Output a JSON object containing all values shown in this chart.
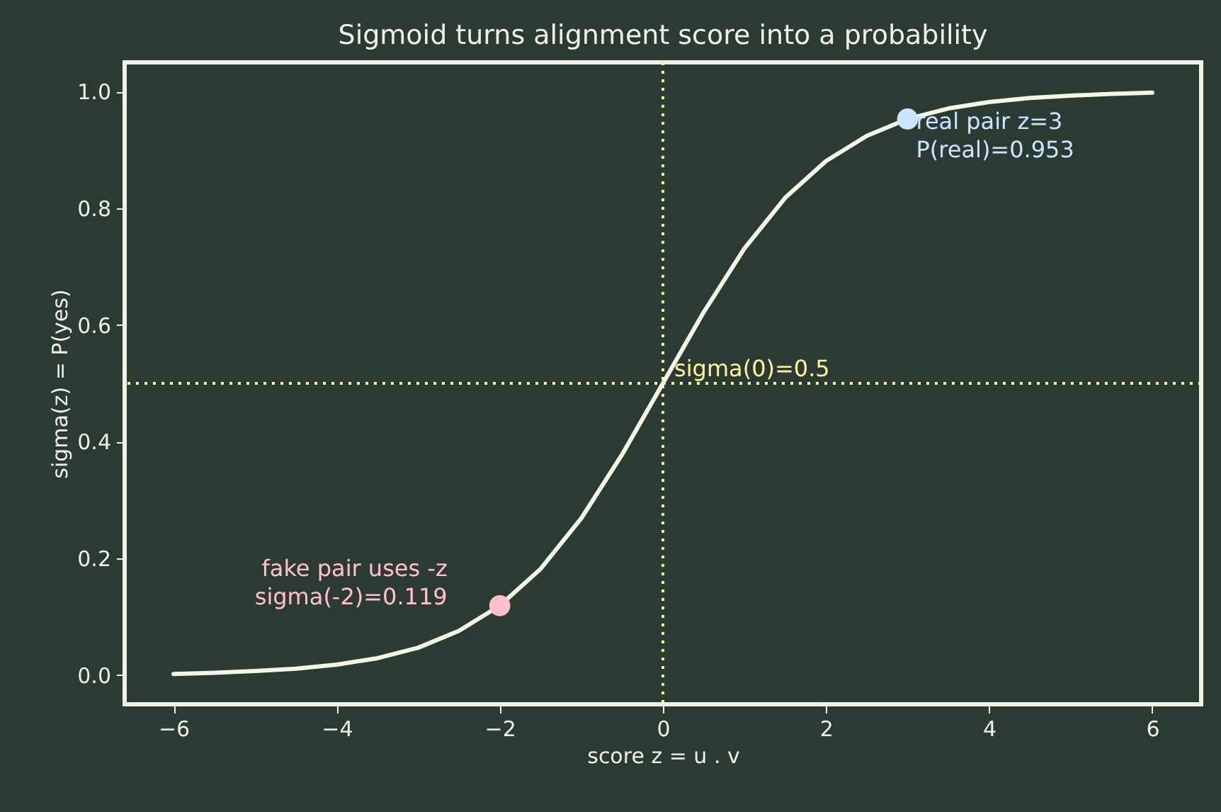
{
  "chart_data": {
    "type": "line",
    "title": "Sigmoid turns alignment score into a probability",
    "xlabel": "score z = u . v",
    "ylabel": "sigma(z) = P(yes)",
    "x": [
      -6,
      -5.5,
      -5,
      -4.5,
      -4,
      -3.5,
      -3,
      -2.5,
      -2,
      -1.5,
      -1,
      -0.5,
      0,
      0.5,
      1,
      1.5,
      2,
      2.5,
      3,
      3.5,
      4,
      4.5,
      5,
      5.5,
      6
    ],
    "series": [
      {
        "color": "#f5f5e6",
        "values": [
          0.002,
          0.004,
          0.007,
          0.011,
          0.018,
          0.029,
          0.047,
          0.076,
          0.119,
          0.182,
          0.269,
          0.378,
          0.5,
          0.622,
          0.731,
          0.818,
          0.881,
          0.924,
          0.953,
          0.971,
          0.982,
          0.989,
          0.993,
          0.996,
          0.998
        ]
      },
      {
        "type": "scatter",
        "marker": "circle",
        "color": "#ffc0cb",
        "x": [
          -2
        ],
        "values": [
          0.119
        ]
      },
      {
        "type": "scatter",
        "marker": "circle",
        "color": "#cce5ff",
        "x": [
          3
        ],
        "values": [
          0.953
        ]
      }
    ],
    "ref_lines": [
      {
        "axis": "x",
        "value": 0,
        "color": "#fff3a0",
        "line_style": "dotted"
      },
      {
        "axis": "y",
        "value": 0.5,
        "color": "#fff3a0",
        "line_style": "dotted"
      }
    ],
    "annotations": [
      {
        "text": "real pair z=3\nP(real)=0.953",
        "x": 3,
        "y": 0.953
      },
      {
        "text": "sigma(0)=0.5",
        "x": 0,
        "y": 0.5
      },
      {
        "text": "fake pair uses -z\nsigma(-2)=0.119",
        "x": -2,
        "y": 0.119
      }
    ],
    "xlim": [
      -6.6,
      6.6
    ],
    "xticks": [
      {
        "value": -6,
        "label": "−6"
      },
      {
        "value": -4,
        "label": "−4"
      },
      {
        "value": -2,
        "label": "−2"
      },
      0,
      2,
      4,
      6
    ],
    "ylim": [
      -0.05,
      1.05
    ],
    "yticks": [
      {
        "value": 0,
        "label": "0.0"
      },
      {
        "value": 0.2,
        "label": "0.2"
      },
      {
        "value": 0.4,
        "label": "0.4"
      },
      {
        "value": 0.6,
        "label": "0.6"
      },
      {
        "value": 0.8,
        "label": "0.8"
      },
      {
        "value": 1,
        "label": "1.0"
      }
    ],
    "grid": false
  }
}
